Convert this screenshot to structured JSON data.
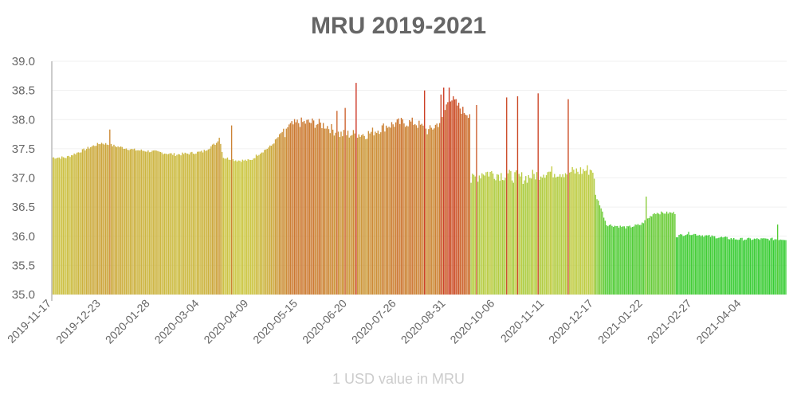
{
  "chart_data": {
    "type": "bar",
    "title": "MRU 2019-2021",
    "xlabel": "1 USD value in MRU",
    "ylabel": "",
    "ylim": [
      35.0,
      39.0
    ],
    "yticks": [
      "35.0",
      "35.5",
      "36.0",
      "36.5",
      "37.0",
      "37.5",
      "38.0",
      "38.5",
      "39.0"
    ],
    "xticks": [
      "2019-11-17",
      "2019-12-23",
      "2020-01-28",
      "2020-03-04",
      "2020-04-09",
      "2020-05-15",
      "2020-06-20",
      "2020-07-26",
      "2020-08-31",
      "2020-10-06",
      "2020-11-11",
      "2020-12-17",
      "2021-01-22",
      "2021-02-27",
      "2021-04-04"
    ],
    "x_start": "2019-11-17",
    "x_end": "2021-05-06",
    "days": 537,
    "grid": true,
    "color_scale": {
      "low": "#33cc33",
      "mid": "#cccc44",
      "high": "#cc3322"
    },
    "keyframes": [
      [
        0,
        37.35
      ],
      [
        10,
        37.35
      ],
      [
        20,
        37.45
      ],
      [
        30,
        37.55
      ],
      [
        36,
        37.6
      ],
      [
        45,
        37.55
      ],
      [
        60,
        37.48
      ],
      [
        75,
        37.45
      ],
      [
        90,
        37.4
      ],
      [
        100,
        37.42
      ],
      [
        110,
        37.45
      ],
      [
        120,
        37.6
      ],
      [
        122,
        37.7
      ],
      [
        125,
        37.35
      ],
      [
        135,
        37.3
      ],
      [
        145,
        37.3
      ],
      [
        150,
        37.4
      ],
      [
        160,
        37.55
      ],
      [
        170,
        37.85
      ],
      [
        180,
        37.95
      ],
      [
        190,
        37.95
      ],
      [
        200,
        37.9
      ],
      [
        210,
        37.75
      ],
      [
        230,
        37.75
      ],
      [
        245,
        37.9
      ],
      [
        255,
        37.95
      ],
      [
        265,
        37.95
      ],
      [
        275,
        37.8
      ],
      [
        285,
        38.0
      ],
      [
        290,
        38.4
      ],
      [
        300,
        38.15
      ],
      [
        305,
        38.1
      ],
      [
        306,
        36.95
      ],
      [
        315,
        37.1
      ],
      [
        330,
        37.05
      ],
      [
        345,
        37.0
      ],
      [
        360,
        37.1
      ],
      [
        380,
        37.1
      ],
      [
        395,
        37.15
      ],
      [
        397,
        36.7
      ],
      [
        400,
        36.55
      ],
      [
        405,
        36.2
      ],
      [
        420,
        36.15
      ],
      [
        430,
        36.2
      ],
      [
        440,
        36.4
      ],
      [
        455,
        36.4
      ],
      [
        456,
        36.0
      ],
      [
        465,
        36.05
      ],
      [
        480,
        36.0
      ],
      [
        500,
        35.95
      ],
      [
        515,
        35.95
      ],
      [
        525,
        35.95
      ],
      [
        536,
        35.95
      ]
    ],
    "spikes": [
      [
        42,
        37.83
      ],
      [
        170,
        37.7
      ],
      [
        222,
        38.63
      ],
      [
        290,
        38.55
      ],
      [
        208,
        38.15
      ],
      [
        214,
        38.2
      ],
      [
        272,
        38.5
      ],
      [
        284,
        38.43
      ],
      [
        286,
        38.55
      ],
      [
        310,
        38.25
      ],
      [
        332,
        38.38
      ],
      [
        340,
        38.4
      ],
      [
        355,
        38.45
      ],
      [
        377,
        38.35
      ],
      [
        131,
        37.9
      ],
      [
        434,
        36.68
      ],
      [
        530,
        36.2
      ]
    ]
  }
}
